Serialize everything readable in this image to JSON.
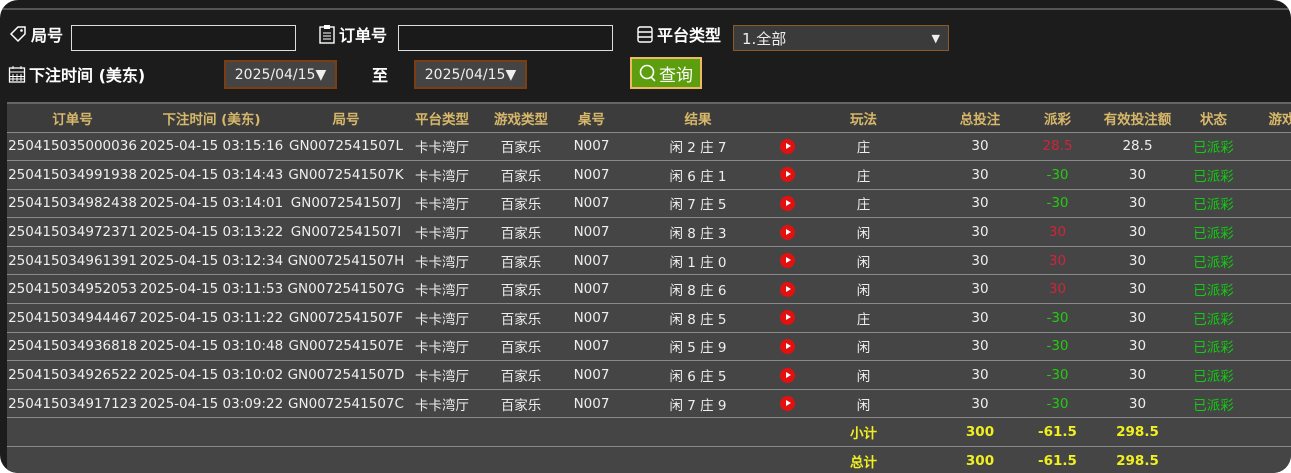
{
  "filters": {
    "round_label": "局号",
    "round_value": "",
    "order_label": "订单号",
    "order_value": "",
    "platform_label": "平台类型",
    "platform_value": "1.全部",
    "time_label": "下注时间 (美东)",
    "date_from": "2025/04/15▼",
    "to_label": "至",
    "date_to": "2025/04/15▼",
    "query_label": "查询"
  },
  "table": {
    "headers": [
      "订单号",
      "下注时间 (美东)",
      "局号",
      "平台类型",
      "游戏类型",
      "桌号",
      "结果",
      "",
      "玩法",
      "总投注",
      "派彩",
      "有效投注额",
      "状态",
      "游戏"
    ],
    "rows": [
      {
        "order": "250415035000036",
        "time": "2025-04-15 03:15:16",
        "round": "GN0072541507L",
        "platform": "卡卡湾厅",
        "game": "百家乐",
        "table": "N007",
        "result": "闲 2 庄 7",
        "play": "庄",
        "bet": "30",
        "payout": "28.5",
        "payout_color": "red",
        "valid": "28.5",
        "status": "已派彩"
      },
      {
        "order": "250415034991938",
        "time": "2025-04-15 03:14:43",
        "round": "GN0072541507K",
        "platform": "卡卡湾厅",
        "game": "百家乐",
        "table": "N007",
        "result": "闲 6 庄 1",
        "play": "庄",
        "bet": "30",
        "payout": "-30",
        "payout_color": "green",
        "valid": "30",
        "status": "已派彩"
      },
      {
        "order": "250415034982438",
        "time": "2025-04-15 03:14:01",
        "round": "GN0072541507J",
        "platform": "卡卡湾厅",
        "game": "百家乐",
        "table": "N007",
        "result": "闲 7 庄 5",
        "play": "庄",
        "bet": "30",
        "payout": "-30",
        "payout_color": "green",
        "valid": "30",
        "status": "已派彩"
      },
      {
        "order": "250415034972371",
        "time": "2025-04-15 03:13:22",
        "round": "GN0072541507I",
        "platform": "卡卡湾厅",
        "game": "百家乐",
        "table": "N007",
        "result": "闲 8 庄 3",
        "play": "闲",
        "bet": "30",
        "payout": "30",
        "payout_color": "red",
        "valid": "30",
        "status": "已派彩"
      },
      {
        "order": "250415034961391",
        "time": "2025-04-15 03:12:34",
        "round": "GN0072541507H",
        "platform": "卡卡湾厅",
        "game": "百家乐",
        "table": "N007",
        "result": "闲 1 庄 0",
        "play": "闲",
        "bet": "30",
        "payout": "30",
        "payout_color": "red",
        "valid": "30",
        "status": "已派彩"
      },
      {
        "order": "250415034952053",
        "time": "2025-04-15 03:11:53",
        "round": "GN0072541507G",
        "platform": "卡卡湾厅",
        "game": "百家乐",
        "table": "N007",
        "result": "闲 8 庄 6",
        "play": "闲",
        "bet": "30",
        "payout": "30",
        "payout_color": "red",
        "valid": "30",
        "status": "已派彩"
      },
      {
        "order": "250415034944467",
        "time": "2025-04-15 03:11:22",
        "round": "GN0072541507F",
        "platform": "卡卡湾厅",
        "game": "百家乐",
        "table": "N007",
        "result": "闲 8 庄 5",
        "play": "庄",
        "bet": "30",
        "payout": "-30",
        "payout_color": "green",
        "valid": "30",
        "status": "已派彩"
      },
      {
        "order": "250415034936818",
        "time": "2025-04-15 03:10:48",
        "round": "GN0072541507E",
        "platform": "卡卡湾厅",
        "game": "百家乐",
        "table": "N007",
        "result": "闲 5 庄 9",
        "play": "闲",
        "bet": "30",
        "payout": "-30",
        "payout_color": "green",
        "valid": "30",
        "status": "已派彩"
      },
      {
        "order": "250415034926522",
        "time": "2025-04-15 03:10:02",
        "round": "GN0072541507D",
        "platform": "卡卡湾厅",
        "game": "百家乐",
        "table": "N007",
        "result": "闲 6 庄 5",
        "play": "闲",
        "bet": "30",
        "payout": "-30",
        "payout_color": "green",
        "valid": "30",
        "status": "已派彩"
      },
      {
        "order": "250415034917123",
        "time": "2025-04-15 03:09:22",
        "round": "GN0072541507C",
        "platform": "卡卡湾厅",
        "game": "百家乐",
        "table": "N007",
        "result": "闲 7 庄 9",
        "play": "闲",
        "bet": "30",
        "payout": "-30",
        "payout_color": "green",
        "valid": "30",
        "status": "已派彩"
      }
    ],
    "subtotal": {
      "label": "小计",
      "bet": "300",
      "payout": "-61.5",
      "valid": "298.5"
    },
    "total": {
      "label": "总计",
      "bet": "300",
      "payout": "-61.5",
      "valid": "298.5"
    }
  }
}
